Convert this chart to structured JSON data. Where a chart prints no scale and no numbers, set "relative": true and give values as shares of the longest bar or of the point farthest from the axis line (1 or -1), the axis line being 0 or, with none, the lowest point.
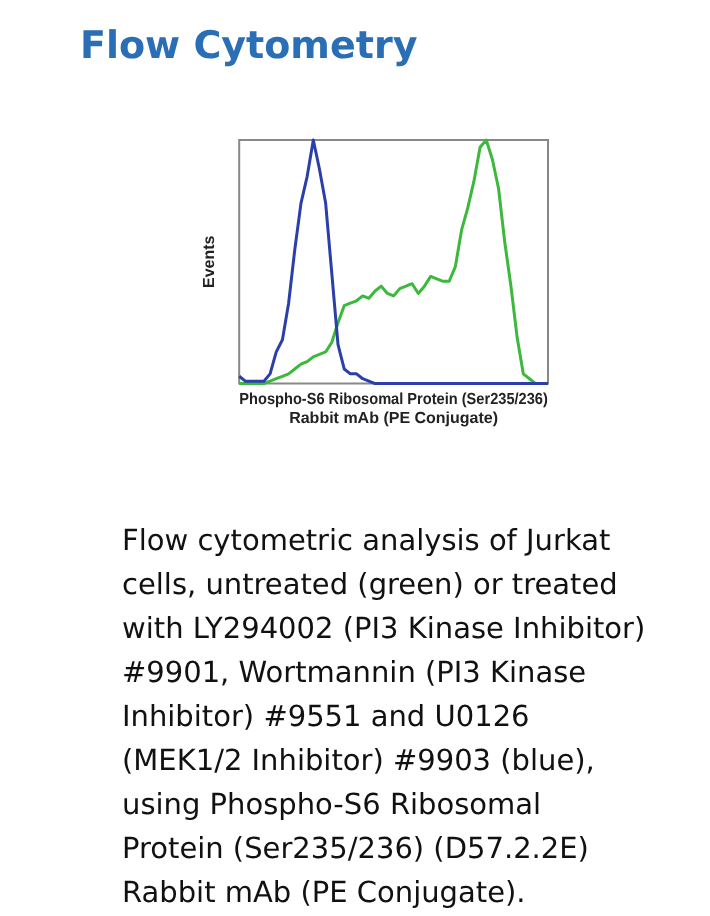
{
  "chart_data": {
    "type": "line",
    "title": "Flow Cytometry",
    "xlabel": "Phospho-S6 Ribosomal Protein (Ser235/236)\nRabbit mAb (PE Conjugate)",
    "ylabel": "Events",
    "relative": true,
    "grid": false,
    "legend": false,
    "marker": "none",
    "line_style": "solid",
    "categories": [
      null,
      null,
      null,
      null,
      null,
      null,
      null,
      null,
      null,
      null,
      null,
      null,
      null,
      null,
      null,
      null,
      null,
      null,
      null,
      null,
      null,
      null,
      null,
      null,
      null,
      null,
      null,
      null,
      null,
      null,
      null,
      null,
      null,
      null,
      null,
      null,
      null,
      null,
      null,
      null,
      null,
      null,
      null,
      null,
      null,
      null,
      null,
      null,
      null,
      null,
      null
    ],
    "series": [
      {
        "color": "#2b3fa8",
        "values": [
          0.03,
          0.01,
          0.01,
          0.01,
          0.01,
          0.04,
          0.13,
          0.18,
          0.33,
          0.55,
          0.74,
          0.85,
          1.0,
          0.88,
          0.74,
          0.45,
          0.16,
          0.06,
          0.04,
          0.04,
          0.02,
          0.01,
          0,
          0,
          0,
          0,
          0,
          0,
          0,
          0,
          0,
          0,
          0,
          0,
          0,
          0,
          0,
          0,
          0,
          0,
          0,
          0,
          0,
          0,
          0,
          0,
          0,
          0,
          0,
          0,
          0
        ]
      },
      {
        "color": "#3cb83c",
        "values": [
          0,
          0,
          0,
          0,
          0,
          0.01,
          0.02,
          0.03,
          0.04,
          0.06,
          0.08,
          0.09,
          0.11,
          0.12,
          0.13,
          0.17,
          0.25,
          0.32,
          0.33,
          0.34,
          0.36,
          0.35,
          0.38,
          0.4,
          0.37,
          0.36,
          0.39,
          0.4,
          0.41,
          0.37,
          0.4,
          0.44,
          0.43,
          0.42,
          0.42,
          0.48,
          0.63,
          0.72,
          0.83,
          0.97,
          1.0,
          0.92,
          0.8,
          0.58,
          0.4,
          0.19,
          0.04,
          0.02,
          0,
          0,
          0
        ]
      }
    ],
    "annotations": [
      "Flow cytometric analysis of Jurkat cells, untreated (green) or treated with LY294002 (PI3 Kinase Inhibitor) #9901, Wortmannin (PI3 Kinase Inhibitor) #9551 and U0126 (MEK1/2 Inhibitor) #9903 (blue), using Phospho-S6 Ribosomal Protein (Ser235/236) (D57.2.2E) Rabbit mAb (PE Conjugate)."
    ]
  }
}
